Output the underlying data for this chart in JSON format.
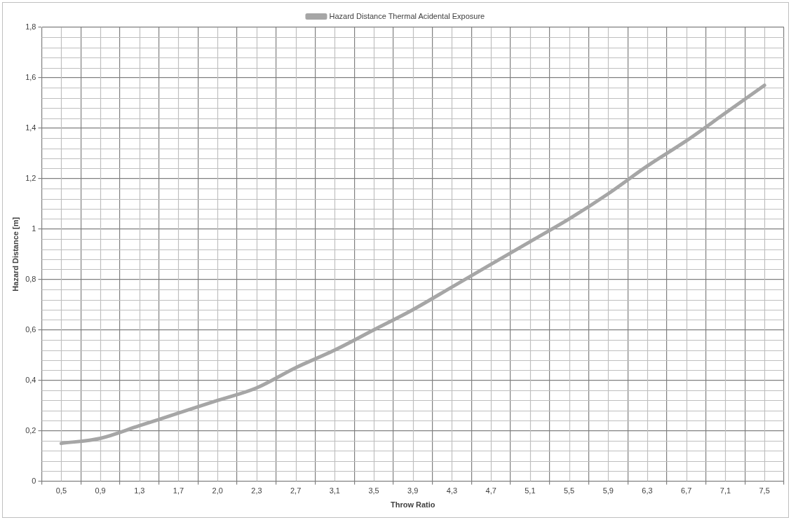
{
  "chart_data": {
    "type": "line",
    "xlabel": "Throw Ratio",
    "ylabel": "Hazard Distance [m]",
    "categories": [
      "0,5",
      "0,9",
      "1,3",
      "1,7",
      "2,0",
      "2,3",
      "2,7",
      "3,1",
      "3,5",
      "3,9",
      "4,3",
      "4,7",
      "5,1",
      "5,5",
      "5,9",
      "6,3",
      "6,7",
      "7,1",
      "7,5"
    ],
    "series": [
      {
        "name": "Hazard Distance Thermal Acidental Exposure",
        "color": "#a6a6a6",
        "values": [
          0.15,
          0.17,
          0.22,
          0.27,
          0.32,
          0.37,
          0.45,
          0.52,
          0.6,
          0.68,
          0.77,
          0.86,
          0.95,
          1.04,
          1.14,
          1.25,
          1.35,
          1.46,
          1.57
        ]
      }
    ],
    "ylim": [
      0,
      1.8
    ],
    "yticks": [
      0,
      {
        "value": 0.2,
        "label": "0,2"
      },
      {
        "value": 0.4,
        "label": "0,4"
      },
      {
        "value": 0.6,
        "label": "0,6"
      },
      {
        "value": 0.8,
        "label": "0,8"
      },
      1,
      {
        "value": 1.2,
        "label": "1,2"
      },
      {
        "value": 1.4,
        "label": "1,4"
      },
      {
        "value": 1.6,
        "label": "1,6"
      },
      {
        "value": 1.8,
        "label": "1,8"
      }
    ],
    "grid": true,
    "legend": "top",
    "marker": "none",
    "line_style": "solid"
  }
}
